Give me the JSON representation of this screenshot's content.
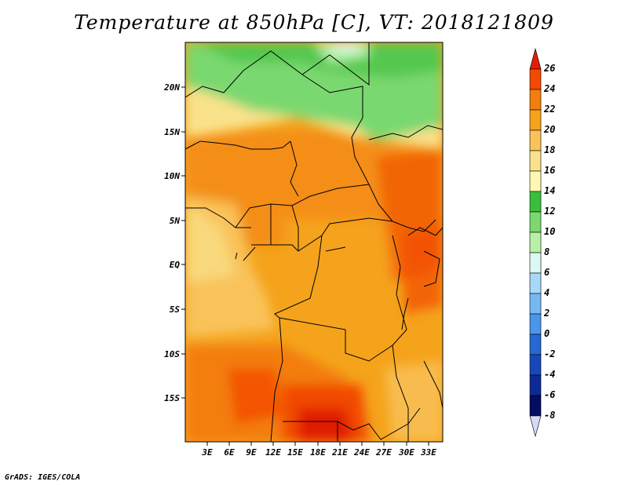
{
  "title": "Temperature at 850hPa [C], VT: 2018121809",
  "credit": "GrADS: IGES/COLA",
  "map": {
    "lat_labels": [
      "20N",
      "15N",
      "10N",
      "5N",
      "EQ",
      "5S",
      "10S",
      "15S"
    ],
    "lon_labels": [
      "3E",
      "6E",
      "9E",
      "12E",
      "15E",
      "18E",
      "21E",
      "24E",
      "27E",
      "30E",
      "33E"
    ]
  },
  "colorbar": {
    "levels": [
      "26",
      "24",
      "22",
      "20",
      "18",
      "16",
      "14",
      "12",
      "10",
      "8",
      "6",
      "4",
      "2",
      "0",
      "-2",
      "-4",
      "-6",
      "-8"
    ],
    "colors": [
      "#e01e00",
      "#f24a00",
      "#f37d0f",
      "#f5a31b",
      "#f9c35a",
      "#fae28c",
      "#fef8b2",
      "#3cbe3c",
      "#7ad86f",
      "#b8f0a8",
      "#dcf8f4",
      "#a8d8f8",
      "#78b8f0",
      "#4a96e8",
      "#2868d4",
      "#1848b8",
      "#0c2a96",
      "#060c60",
      "#d8d8f8"
    ]
  }
}
